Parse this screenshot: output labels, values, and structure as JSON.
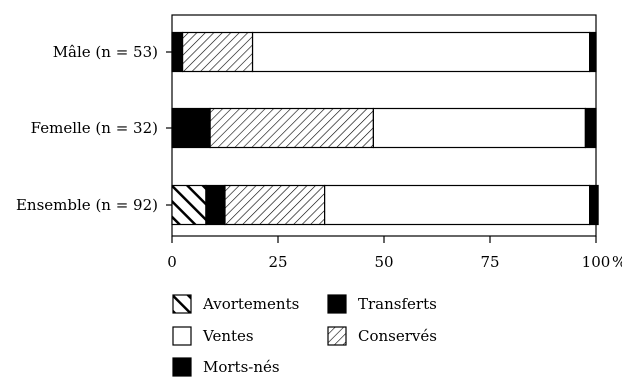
{
  "chart_data": {
    "type": "bar",
    "orientation": "horizontal",
    "stacked": true,
    "percent": true,
    "title": "",
    "xlabel": "",
    "ylabel": "",
    "xlim": [
      0,
      100
    ],
    "x_ticks": [
      0,
      25,
      50,
      75,
      100
    ],
    "x_tick_labels": [
      "0",
      "25",
      "50",
      "75",
      "100"
    ],
    "x_unit": "%",
    "grid": false,
    "legend_position": "bottom",
    "categories": [
      "Mâle (n = 53)",
      "Femelle (n = 32)",
      "Ensemble (n = 92)"
    ],
    "series": [
      {
        "name": "Avortements",
        "pattern": "back-diagonal",
        "values": [
          0,
          0,
          8
        ]
      },
      {
        "name": "Transferts",
        "pattern": "solid-black",
        "values": [
          2.5,
          9,
          4.5
        ]
      },
      {
        "name": "Conservés",
        "pattern": "forward-diagonal",
        "values": [
          16.5,
          38.5,
          23.5
        ]
      },
      {
        "name": "Ventes",
        "pattern": "white",
        "values": [
          79.5,
          50,
          62.5
        ]
      },
      {
        "name": "Morts-nés",
        "pattern": "solid-black",
        "values": [
          1.5,
          2.5,
          2
        ]
      }
    ],
    "legend": [
      {
        "name": "Avortements",
        "pattern": "back-diagonal"
      },
      {
        "name": "Transferts",
        "pattern": "solid-black"
      },
      {
        "name": "Ventes",
        "pattern": "white"
      },
      {
        "name": "Conservés",
        "pattern": "forward-diagonal"
      },
      {
        "name": "Morts-nés",
        "pattern": "solid-black"
      }
    ]
  }
}
